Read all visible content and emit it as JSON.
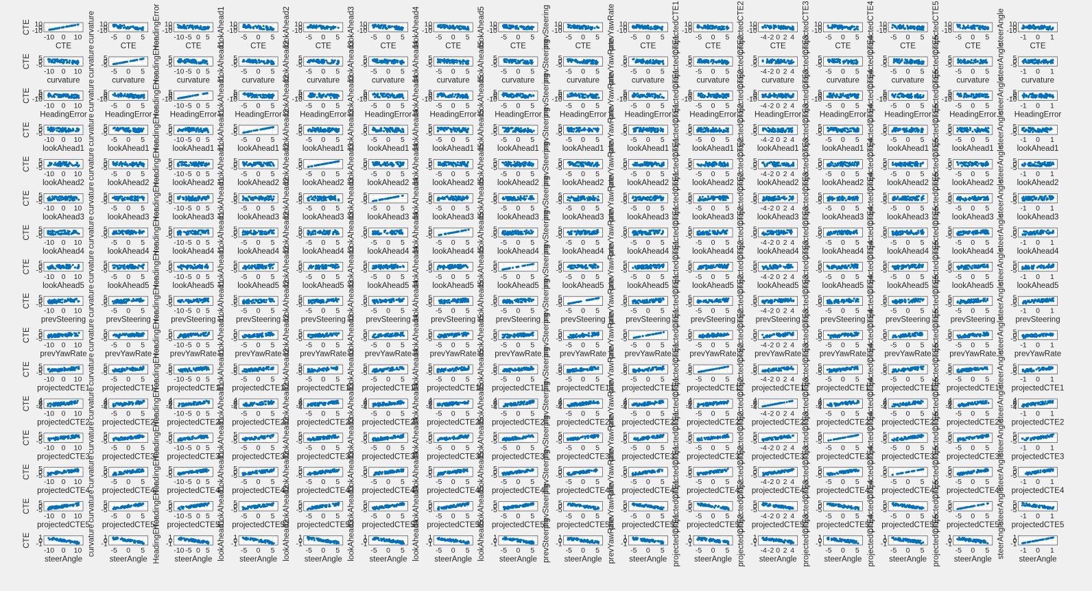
{
  "chart_data": {
    "type": "scatter",
    "variables": [
      "CTE",
      "curvature",
      "HeadingError",
      "lookAhead1",
      "lookAhead2",
      "lookAhead3",
      "lookAhead4",
      "lookAhead5",
      "prevSteering",
      "prevYawRate",
      "projectedCTE1",
      "projectedCTE2",
      "projectedCTE3",
      "projectedCTE4",
      "projectedCTE5",
      "steerAngle"
    ],
    "x_ticks": {
      "CTE": [
        "-10",
        "0",
        "10"
      ],
      "curvature": [
        "-5",
        "0",
        "5"
      ],
      "HeadingError": [
        "-10",
        "-5",
        "0",
        "5"
      ],
      "lookAhead1": [
        "-5",
        "0",
        "5"
      ],
      "lookAhead2": [
        "-5",
        "0",
        "5"
      ],
      "lookAhead3": [
        "-5",
        "0",
        "5"
      ],
      "lookAhead4": [
        "-5",
        "0",
        "5"
      ],
      "lookAhead5": [
        "-5",
        "0",
        "5"
      ],
      "prevSteering": [
        "-5",
        "0",
        "5"
      ],
      "prevYawRate": [
        "-5",
        "0",
        "5"
      ],
      "projectedCTE1": [
        "-5",
        "0",
        "5"
      ],
      "projectedCTE2": [
        "-4",
        "-2",
        "0",
        "2",
        "4"
      ],
      "projectedCTE3": [
        "-5",
        "0",
        "5"
      ],
      "projectedCTE4": [
        "-5",
        "0",
        "5"
      ],
      "projectedCTE5": [
        "-5",
        "0",
        "5"
      ],
      "steerAngle": [
        "-1",
        "0",
        "1"
      ]
    },
    "y_ticks": {
      "CTE": [
        "10",
        "0",
        "-10"
      ],
      "curvature": [
        "5",
        "0",
        "-5"
      ],
      "HeadingError": [
        "5",
        "0",
        "-5",
        "-10"
      ],
      "lookAhead1": [
        "5",
        "0",
        "-5"
      ],
      "lookAhead2": [
        "5",
        "0",
        "-5"
      ],
      "lookAhead3": [
        "5",
        "0",
        "-5"
      ],
      "lookAhead4": [
        "5",
        "0",
        "-5"
      ],
      "lookAhead5": [
        "5",
        "0",
        "-5"
      ],
      "prevSteering": [
        "5",
        "0",
        "-5"
      ],
      "prevYawRate": [
        "5",
        "0",
        "-5"
      ],
      "projectedCTE1": [
        "5",
        "0",
        "-5"
      ],
      "projectedCTE2": [
        "4",
        "2",
        "0",
        "-2",
        "-4"
      ],
      "projectedCTE3": [
        "5",
        "0",
        "-5"
      ],
      "projectedCTE4": [
        "5",
        "0",
        "-5"
      ],
      "projectedCTE5": [
        "5",
        "0",
        "-5"
      ],
      "steerAngle": [
        "1",
        "0",
        "-1"
      ]
    },
    "marker_color": "#0072bd",
    "background_color": "#f0f0f0",
    "grid": true
  }
}
